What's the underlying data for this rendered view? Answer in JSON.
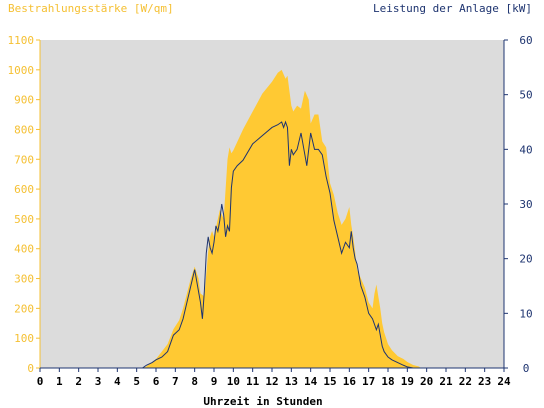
{
  "chart_data": {
    "type": "area",
    "left_axis_title": "Bestrahlungsstärke [W/qm]",
    "right_axis_title": "Leistung der Anlage [kW]",
    "xlabel": "Uhrzeit in Stunden",
    "xlim": [
      0,
      24
    ],
    "ylim_left": [
      0,
      1100
    ],
    "ylim_right": [
      0,
      60
    ],
    "x_ticks": [
      "0",
      "1",
      "2",
      "3",
      "4",
      "5",
      "6",
      "7",
      "8",
      "9",
      "10",
      "11",
      "12",
      "13",
      "14",
      "15",
      "16",
      "17",
      "18",
      "19",
      "20",
      "21",
      "22",
      "23",
      "24"
    ],
    "y_ticks_left": [
      "0",
      "100",
      "200",
      "300",
      "400",
      "500",
      "600",
      "700",
      "800",
      "900",
      "1000",
      "1100"
    ],
    "y_ticks_right": [
      "0",
      "10",
      "20",
      "30",
      "40",
      "50",
      "60"
    ],
    "grid": false,
    "colors": {
      "plot_background": "#dcdcdc",
      "irradiance_fill": "#ffc933",
      "power_line": "#1e3470",
      "left_axis": "#f5c033",
      "right_axis": "#1e3470"
    },
    "series": [
      {
        "axis": "left",
        "type": "area",
        "x": [
          0,
          5.3,
          5.5,
          5.8,
          6.0,
          6.3,
          6.6,
          6.9,
          7.2,
          7.4,
          7.6,
          7.8,
          8.0,
          8.2,
          8.3,
          8.5,
          8.7,
          8.8,
          8.9,
          9.0,
          9.2,
          9.3,
          9.5,
          9.6,
          9.7,
          9.8,
          9.9,
          10.0,
          10.5,
          11.0,
          11.5,
          12.0,
          12.3,
          12.5,
          12.7,
          12.8,
          12.9,
          13.0,
          13.1,
          13.3,
          13.5,
          13.7,
          13.9,
          14.0,
          14.2,
          14.4,
          14.6,
          14.8,
          15.0,
          15.2,
          15.4,
          15.6,
          15.8,
          16.0,
          16.1,
          16.2,
          16.3,
          16.4,
          16.6,
          16.8,
          17.0,
          17.2,
          17.3,
          17.4,
          17.5,
          17.6,
          17.7,
          17.8,
          17.9,
          18.0,
          18.2,
          18.5,
          18.8,
          19.0,
          19.3,
          19.6,
          19.7,
          24
        ],
        "values": [
          0,
          0,
          5,
          20,
          30,
          55,
          80,
          130,
          160,
          200,
          250,
          300,
          340,
          300,
          250,
          240,
          390,
          440,
          460,
          440,
          500,
          530,
          500,
          600,
          700,
          740,
          720,
          730,
          800,
          860,
          920,
          960,
          990,
          1000,
          970,
          980,
          930,
          880,
          860,
          880,
          870,
          930,
          900,
          820,
          850,
          850,
          760,
          740,
          620,
          580,
          520,
          480,
          500,
          540,
          480,
          440,
          390,
          330,
          300,
          270,
          220,
          200,
          250,
          280,
          240,
          200,
          150,
          120,
          100,
          80,
          60,
          40,
          30,
          20,
          10,
          5,
          0,
          0
        ]
      },
      {
        "axis": "right",
        "type": "line",
        "x": [
          0,
          5.3,
          5.5,
          5.8,
          6.0,
          6.3,
          6.6,
          6.9,
          7.2,
          7.4,
          7.6,
          7.8,
          8.0,
          8.1,
          8.3,
          8.4,
          8.5,
          8.6,
          8.7,
          8.8,
          8.9,
          9.0,
          9.1,
          9.2,
          9.3,
          9.4,
          9.5,
          9.6,
          9.7,
          9.8,
          9.9,
          10.0,
          10.2,
          10.5,
          11.0,
          11.5,
          12.0,
          12.3,
          12.5,
          12.6,
          12.7,
          12.8,
          12.9,
          13.0,
          13.1,
          13.3,
          13.5,
          13.7,
          13.8,
          14.0,
          14.2,
          14.4,
          14.6,
          14.8,
          15.0,
          15.2,
          15.4,
          15.6,
          15.8,
          16.0,
          16.1,
          16.2,
          16.3,
          16.4,
          16.6,
          16.8,
          17.0,
          17.2,
          17.4,
          17.5,
          17.6,
          17.7,
          17.8,
          18.0,
          18.2,
          18.5,
          18.8,
          19.0,
          19.3,
          19.6,
          24
        ],
        "values": [
          0,
          0,
          0.5,
          1,
          1.5,
          2,
          3,
          6,
          7,
          9,
          12,
          15,
          18,
          16,
          12,
          9,
          14,
          21,
          24,
          22,
          21,
          23,
          26,
          25,
          27,
          30,
          28,
          24,
          26,
          25,
          33,
          36,
          37,
          38,
          41,
          42.5,
          44,
          44.5,
          45,
          44,
          45,
          44,
          37,
          40,
          39,
          40,
          43,
          39,
          37,
          43,
          40,
          40,
          39,
          35,
          32,
          27,
          24,
          21,
          23,
          22,
          25,
          22,
          20,
          19,
          15,
          13,
          10,
          9,
          7,
          8,
          6,
          4,
          3,
          2,
          1.5,
          1,
          0.5,
          0.2,
          0,
          0,
          0
        ]
      }
    ]
  }
}
